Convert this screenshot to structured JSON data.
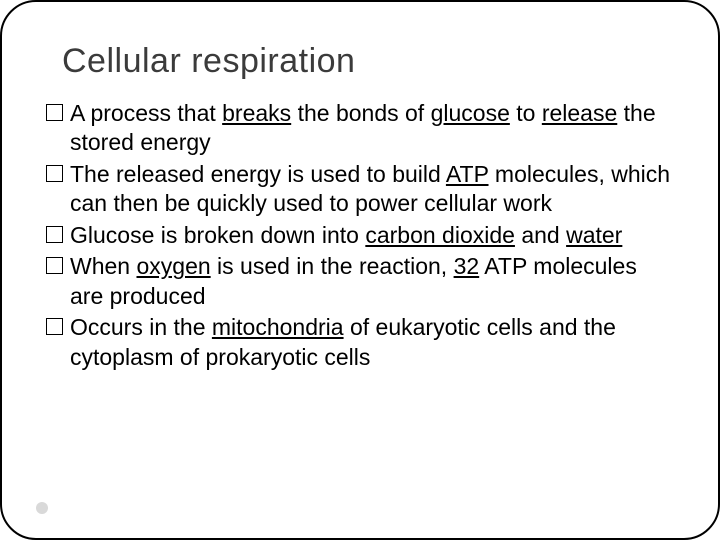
{
  "slide": {
    "title": "Cellular respiration",
    "title_color": "#3b3b3b",
    "title_fontsize": 34,
    "body_fontsize": 23,
    "body_color": "#000000",
    "background_color": "#ffffff",
    "border_color": "#000000",
    "border_radius": 36,
    "bullet_marker": "square-outline",
    "footer_dot_color": "#d9d9d9",
    "bullets": [
      {
        "segments": [
          {
            "text": "A process that "
          },
          {
            "text": "breaks",
            "underline": true
          },
          {
            "text": " the bonds of "
          },
          {
            "text": "glucose",
            "underline": true
          },
          {
            "text": " to "
          },
          {
            "text": "release",
            "underline": true
          },
          {
            "text": " the stored energy"
          }
        ]
      },
      {
        "segments": [
          {
            "text": "The released energy is used to build "
          },
          {
            "text": "ATP",
            "underline": true
          },
          {
            "text": " molecules, which can then be quickly used to power cellular work"
          }
        ]
      },
      {
        "segments": [
          {
            "text": "Glucose is broken down into "
          },
          {
            "text": "carbon dioxide",
            "underline": true
          },
          {
            "text": " and "
          },
          {
            "text": "water",
            "underline": true
          }
        ]
      },
      {
        "segments": [
          {
            "text": "When "
          },
          {
            "text": "oxygen",
            "underline": true
          },
          {
            "text": " is used in the reaction, "
          },
          {
            "text": "32",
            "underline": true
          },
          {
            "text": " ATP molecules are produced"
          }
        ]
      },
      {
        "segments": [
          {
            "text": "Occurs in the  "
          },
          {
            "text": "mitochondria",
            "underline": true
          },
          {
            "text": "  of eukaryotic cells and the cytoplasm of prokaryotic cells"
          }
        ]
      }
    ]
  }
}
